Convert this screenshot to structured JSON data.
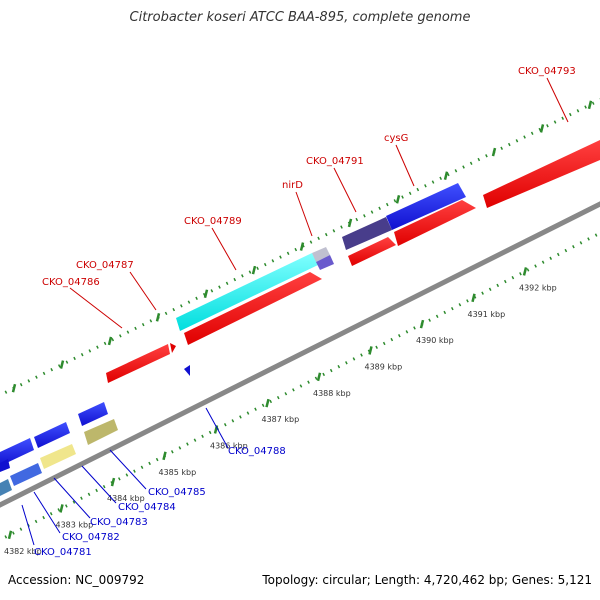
{
  "title": "Citrobacter koseri ATCC BAA-895, complete genome",
  "footer": {
    "accession": "Accession: NC_009792",
    "summary": "Topology: circular; Length: 4,720,462 bp; Genes: 5,121"
  },
  "colors": {
    "forward_label": "#cc0000",
    "reverse_label": "#0000cc",
    "backbone": "#888888",
    "tick": "#2e8b2e"
  },
  "scale_labels": [
    "4382 kbp",
    "4383 kbp",
    "4384 kbp",
    "4385 kbp",
    "4386 kbp",
    "4387 kbp",
    "4388 kbp",
    "4389 kbp",
    "4390 kbp",
    "4391 kbp",
    "4392 kbp"
  ],
  "top_labels": [
    "CKO_04786",
    "CKO_04787",
    "CKO_04789",
    "nirD",
    "CKO_04791",
    "cysG",
    "CKO_04793"
  ],
  "bottom_labels": [
    "CKO_04781",
    "CKO_04782",
    "CKO_04783",
    "CKO_04784",
    "CKO_04785",
    "CKO_04788"
  ]
}
